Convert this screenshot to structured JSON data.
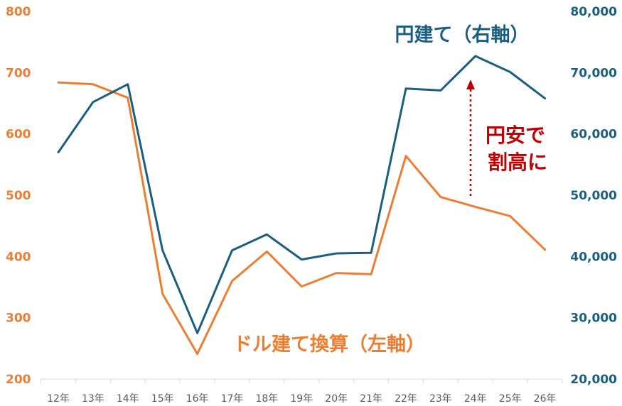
{
  "chart_data": {
    "type": "line",
    "categories": [
      "12年",
      "13年",
      "14年",
      "15年",
      "16年",
      "17年",
      "18年",
      "19年",
      "20年",
      "21年",
      "22年",
      "23年",
      "24年",
      "25年",
      "26年"
    ],
    "series": [
      {
        "name": "ドル建て換算（左軸）",
        "axis": "left",
        "color": "#ED7D31",
        "values": [
          684,
          681,
          659,
          339,
          241,
          360,
          408,
          351,
          373,
          371,
          564,
          497,
          481,
          466,
          411
        ]
      },
      {
        "name": "円建て（右軸）",
        "axis": "right",
        "color": "#1B5E7E",
        "values": [
          57000,
          65200,
          68100,
          41000,
          27500,
          41000,
          43600,
          39500,
          40500,
          40600,
          67400,
          67100,
          72700,
          70100,
          65800
        ]
      }
    ],
    "left_axis": {
      "ylim": [
        200,
        800
      ],
      "ticks": [
        "200",
        "300",
        "400",
        "500",
        "600",
        "700",
        "800"
      ],
      "color": "#ED7D31"
    },
    "right_axis": {
      "ylim": [
        20000,
        80000
      ],
      "ticks": [
        "20,000",
        "30,000",
        "40,000",
        "50,000",
        "60,000",
        "70,000",
        "80,000"
      ],
      "color": "#1B5E7E"
    },
    "grid": false,
    "annotations": {
      "series_label_yen": "円建て（右軸）",
      "series_label_usd": "ドル建て換算（左軸）",
      "note_line1": "円安で",
      "note_line2": "割高に",
      "note_color": "#C00000"
    }
  }
}
